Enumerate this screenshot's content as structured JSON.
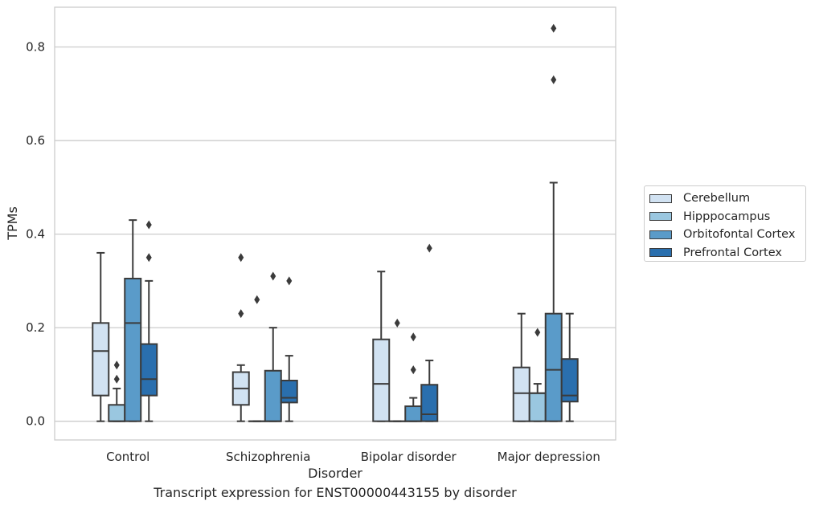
{
  "chart_data": {
    "type": "box",
    "title": "Transcript expression for ENST00000443155 by disorder",
    "xlabel": "Disorder",
    "ylabel": "TPMs",
    "ylim": [
      -0.04,
      0.885
    ],
    "yticks": [
      "0.0",
      "0.2",
      "0.4",
      "0.6",
      "0.8"
    ],
    "ytick_values": [
      0.0,
      0.2,
      0.4,
      0.6,
      0.8
    ],
    "grid": "horizontal",
    "legend_placement": "right",
    "categories": [
      "Control",
      "Schizophrenia",
      "Bipolar disorder",
      "Major depression"
    ],
    "series": [
      {
        "name": "Cerebellum",
        "color": "#d1e2f2",
        "boxes": [
          {
            "whislo": 0.0,
            "q1": 0.055,
            "med": 0.15,
            "q3": 0.21,
            "whishi": 0.36,
            "fliers": []
          },
          {
            "whislo": 0.0,
            "q1": 0.035,
            "med": 0.07,
            "q3": 0.105,
            "whishi": 0.12,
            "fliers": [
              0.23,
              0.35
            ]
          },
          {
            "whislo": 0.0,
            "q1": 0.0,
            "med": 0.08,
            "q3": 0.175,
            "whishi": 0.32,
            "fliers": []
          },
          {
            "whislo": 0.0,
            "q1": 0.0,
            "med": 0.06,
            "q3": 0.115,
            "whishi": 0.23,
            "fliers": []
          }
        ]
      },
      {
        "name": "Hipppocampus",
        "color": "#9ac7e0",
        "boxes": [
          {
            "whislo": 0.0,
            "q1": 0.0,
            "med": 0.0,
            "q3": 0.035,
            "whishi": 0.07,
            "fliers": [
              0.09,
              0.12
            ]
          },
          {
            "whislo": 0.0,
            "q1": 0.0,
            "med": 0.0,
            "q3": 0.0,
            "whishi": 0.0,
            "fliers": [
              0.26
            ]
          },
          {
            "whislo": 0.0,
            "q1": 0.0,
            "med": 0.0,
            "q3": 0.0,
            "whishi": 0.0,
            "fliers": [
              0.21
            ]
          },
          {
            "whislo": 0.0,
            "q1": 0.0,
            "med": 0.06,
            "q3": 0.06,
            "whishi": 0.08,
            "fliers": [
              0.19
            ]
          }
        ]
      },
      {
        "name": "Orbitofontal Cortex",
        "color": "#5a9bc9",
        "boxes": [
          {
            "whislo": 0.0,
            "q1": 0.0,
            "med": 0.21,
            "q3": 0.305,
            "whishi": 0.43,
            "fliers": []
          },
          {
            "whislo": 0.0,
            "q1": 0.0,
            "med": 0.0,
            "q3": 0.108,
            "whishi": 0.2,
            "fliers": [
              0.31
            ]
          },
          {
            "whislo": 0.0,
            "q1": 0.0,
            "med": 0.0,
            "q3": 0.032,
            "whishi": 0.05,
            "fliers": [
              0.11,
              0.18
            ]
          },
          {
            "whislo": 0.0,
            "q1": 0.0,
            "med": 0.11,
            "q3": 0.23,
            "whishi": 0.51,
            "fliers": [
              0.73,
              0.84
            ]
          }
        ]
      },
      {
        "name": "Prefrontal Cortex",
        "color": "#2a6fae",
        "boxes": [
          {
            "whislo": 0.0,
            "q1": 0.055,
            "med": 0.09,
            "q3": 0.165,
            "whishi": 0.3,
            "fliers": [
              0.35,
              0.42
            ]
          },
          {
            "whislo": 0.0,
            "q1": 0.04,
            "med": 0.05,
            "q3": 0.087,
            "whishi": 0.14,
            "fliers": [
              0.3
            ]
          },
          {
            "whislo": 0.0,
            "q1": 0.0,
            "med": 0.015,
            "q3": 0.078,
            "whishi": 0.13,
            "fliers": [
              0.37
            ]
          },
          {
            "whislo": 0.0,
            "q1": 0.042,
            "med": 0.055,
            "q3": 0.133,
            "whishi": 0.23,
            "fliers": []
          }
        ]
      }
    ]
  }
}
